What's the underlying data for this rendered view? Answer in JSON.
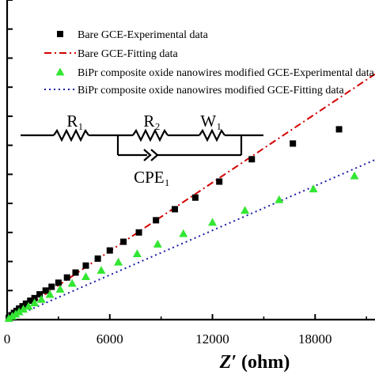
{
  "chart_data": {
    "type": "scatter",
    "title": "",
    "xlabel_symbol": "Z′",
    "xlabel_unit": "(ohm)",
    "ylabel": "",
    "xlim": [
      0,
      21500
    ],
    "ylim": [
      0,
      11000
    ],
    "x_ticks": [
      0,
      6000,
      12000,
      18000
    ],
    "x_tick_labels": [
      "0",
      "6000",
      "12000",
      "18000"
    ],
    "y_ticks": [
      1000,
      2000,
      3000,
      4000,
      5000,
      6000,
      7000,
      8000,
      9000,
      10000,
      11000
    ],
    "grid": false,
    "legend_position": "top-right",
    "series": [
      {
        "name": "Bare GCE-Experimental data",
        "kind": "scatter",
        "marker": "square",
        "color": "#000000",
        "points": [
          [
            100,
            60
          ],
          [
            250,
            150
          ],
          [
            400,
            230
          ],
          [
            550,
            300
          ],
          [
            700,
            380
          ],
          [
            900,
            460
          ],
          [
            1100,
            550
          ],
          [
            1350,
            650
          ],
          [
            1600,
            740
          ],
          [
            1900,
            870
          ],
          [
            2250,
            1000
          ],
          [
            2600,
            1130
          ],
          [
            3000,
            1270
          ],
          [
            3500,
            1450
          ],
          [
            4000,
            1620
          ],
          [
            4600,
            1860
          ],
          [
            5300,
            2100
          ],
          [
            6000,
            2380
          ],
          [
            6800,
            2680
          ],
          [
            7700,
            3000
          ],
          [
            8700,
            3420
          ],
          [
            9800,
            3800
          ],
          [
            11000,
            4200
          ],
          [
            12400,
            4750
          ],
          [
            14300,
            5520
          ],
          [
            16700,
            6060
          ],
          [
            19400,
            6550
          ]
        ]
      },
      {
        "name": "Bare GCE-Fitting data",
        "kind": "line",
        "style": "dash-dot",
        "color": "#d40000",
        "points": [
          [
            0,
            0
          ],
          [
            21500,
            8450
          ]
        ]
      },
      {
        "name": "BiPr composite oxide nanowires modified GCE-Experimental data",
        "kind": "scatter",
        "marker": "triangle",
        "color": "#33e633",
        "points": [
          [
            100,
            40
          ],
          [
            300,
            120
          ],
          [
            500,
            190
          ],
          [
            700,
            270
          ],
          [
            950,
            360
          ],
          [
            1250,
            460
          ],
          [
            1600,
            580
          ],
          [
            2000,
            700
          ],
          [
            2500,
            870
          ],
          [
            3100,
            1050
          ],
          [
            3800,
            1250
          ],
          [
            4600,
            1480
          ],
          [
            5500,
            1700
          ],
          [
            6500,
            1980
          ],
          [
            7600,
            2270
          ],
          [
            8800,
            2600
          ],
          [
            10300,
            2960
          ],
          [
            12000,
            3350
          ],
          [
            13900,
            3760
          ],
          [
            15900,
            4130
          ],
          [
            17900,
            4500
          ],
          [
            20300,
            4950
          ]
        ]
      },
      {
        "name": "BiPr composite oxide nanowires modified GCE-Fitting data",
        "kind": "line",
        "style": "dotted",
        "color": "#1a1aa6",
        "points": [
          [
            0,
            0
          ],
          [
            21500,
            5500
          ]
        ]
      }
    ],
    "inset_circuit": {
      "elements": [
        "R₁",
        "R₂",
        "W₁",
        "CPE₁"
      ]
    }
  }
}
